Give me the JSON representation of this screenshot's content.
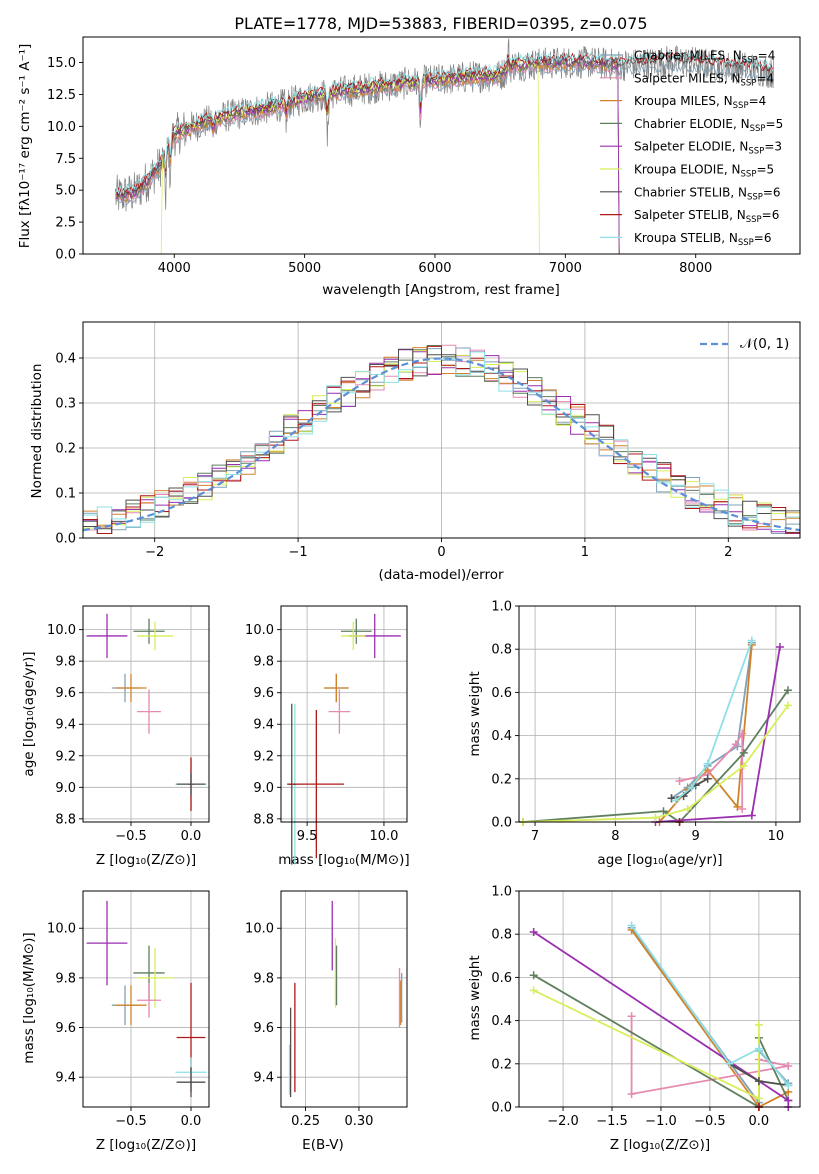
{
  "page_title": "PLATE=1778, MJD=53883, FIBERID=0395, z=0.075",
  "colors": {
    "Chabrier MILES": "#7fa2b8",
    "Salpeter MILES": "#e58ab0",
    "Kroupa MILES": "#d2832a",
    "Chabrier ELODIE": "#5f7f5f",
    "Salpeter ELODIE": "#9a2fb0",
    "Kroupa ELODIE": "#d8ee5a",
    "Chabrier STELIB": "#4f4f4f",
    "Salpeter STELIB": "#b01818",
    "Kroupa STELIB": "#8ee0e6",
    "data": "#808080",
    "normal": "#5b8fd8"
  },
  "chart_data": [
    {
      "id": "spectrum",
      "type": "line",
      "title": "PLATE=1778, MJD=53883, FIBERID=0395, z=0.075",
      "xlabel": "wavelength [Angstrom, rest frame]",
      "ylabel": "Flux [fλ10⁻¹⁷ erg cm⁻² s⁻¹ A⁻¹]",
      "xlim": [
        3300,
        8800
      ],
      "ylim": [
        0,
        17
      ],
      "xticks": [
        "4000",
        "5000",
        "6000",
        "7000",
        "8000"
      ],
      "yticks": [
        "0.0",
        "2.5",
        "5.0",
        "7.5",
        "10.0",
        "12.5",
        "15.0"
      ],
      "continuum": {
        "x": [
          3550,
          3700,
          3800,
          3900,
          3950,
          4000,
          4100,
          4200,
          4400,
          4600,
          4800,
          5000,
          5200,
          5500,
          5800,
          6000,
          6300,
          6500,
          6600,
          6800,
          7000,
          7200,
          7400,
          7600,
          7800,
          8000,
          8200,
          8400,
          8600
        ],
        "y": [
          4.5,
          4.8,
          5.8,
          7.0,
          8.5,
          9.3,
          9.8,
          10.2,
          10.8,
          11.2,
          11.6,
          12.2,
          12.6,
          13.0,
          13.4,
          13.6,
          13.9,
          14.0,
          14.8,
          14.9,
          15.0,
          15.0,
          14.8,
          14.9,
          15.1,
          15.0,
          14.7,
          14.6,
          14.2
        ]
      },
      "legend_placement": "right",
      "series": [
        {
          "name": "Chabrier MILES, N_SSP=4"
        },
        {
          "name": "Salpeter MILES, N_SSP=4"
        },
        {
          "name": "Kroupa MILES, N_SSP=4"
        },
        {
          "name": "Chabrier ELODIE, N_SSP=5"
        },
        {
          "name": "Salpeter ELODIE, N_SSP=3"
        },
        {
          "name": "Kroupa ELODIE, N_SSP=5"
        },
        {
          "name": "Chabrier STELIB, N_SSP=6"
        },
        {
          "name": "Salpeter STELIB, N_SSP=6"
        },
        {
          "name": "Kroupa STELIB, N_SSP=6"
        }
      ]
    },
    {
      "id": "residuals",
      "type": "line",
      "xlabel": "(data-model)/error",
      "ylabel": "Normed distribution",
      "xlim": [
        -2.5,
        2.5
      ],
      "ylim": [
        0,
        0.48
      ],
      "xticks": [
        "−2",
        "−1",
        "0",
        "1",
        "2"
      ],
      "yticks": [
        "0.0",
        "0.1",
        "0.2",
        "0.3",
        "0.4"
      ],
      "grid": true,
      "legend": "𝒩(0, 1)",
      "legend_placement": "top-right",
      "normal_curve": {
        "mean": 0,
        "sigma": 1
      }
    },
    {
      "id": "age_vs_Z",
      "type": "scatter",
      "xlabel": "Z [log₁₀(Z/Z⊙)]",
      "ylabel": "age  [log₁₀(age/yr)]",
      "xlim": [
        -0.9,
        0.15
      ],
      "ylim": [
        8.78,
        10.15
      ],
      "xticks": [
        {
          "v": -0.5,
          "t": "−0.5"
        },
        {
          "v": 0.0,
          "t": "0.0"
        }
      ],
      "yticks": [
        {
          "v": 8.8,
          "t": "8.8"
        },
        {
          "v": 9.0,
          "t": "9.0"
        },
        {
          "v": 9.2,
          "t": "9.2"
        },
        {
          "v": 9.4,
          "t": "9.4"
        },
        {
          "v": 9.6,
          "t": "9.6"
        },
        {
          "v": 9.8,
          "t": "9.8"
        },
        {
          "v": 10.0,
          "t": "10.0"
        }
      ],
      "points": [
        {
          "model": "Salpeter ELODIE",
          "x": -0.7,
          "y": 9.96,
          "xerr": 0.17,
          "yerr": 0.14
        },
        {
          "model": "Chabrier ELODIE",
          "x": -0.35,
          "y": 9.99,
          "xerr": 0.13,
          "yerr": 0.08
        },
        {
          "model": "Kroupa ELODIE",
          "x": -0.3,
          "y": 9.96,
          "xerr": 0.15,
          "yerr": 0.09
        },
        {
          "model": "Chabrier MILES",
          "x": -0.55,
          "y": 9.63,
          "xerr": 0.11,
          "yerr": 0.09
        },
        {
          "model": "Kroupa MILES",
          "x": -0.5,
          "y": 9.63,
          "xerr": 0.13,
          "yerr": 0.09
        },
        {
          "model": "Salpeter MILES",
          "x": -0.35,
          "y": 9.48,
          "xerr": 0.1,
          "yerr": 0.14
        },
        {
          "model": "Kroupa STELIB",
          "x": 0.0,
          "y": 9.02,
          "xerr": 0.13,
          "yerr": 0.16
        },
        {
          "model": "Salpeter STELIB",
          "x": 0.0,
          "y": 9.02,
          "xerr": 0.02,
          "yerr": 0.17
        },
        {
          "model": "Chabrier STELIB",
          "x": 0.0,
          "y": 9.02,
          "xerr": 0.12,
          "yerr": 0.07
        }
      ]
    },
    {
      "id": "age_vs_mass",
      "type": "scatter",
      "xlabel": "mass [log₁₀(M/M⊙)]",
      "xlim": [
        9.33,
        10.15
      ],
      "ylim": [
        8.78,
        10.15
      ],
      "xticks": [
        {
          "v": 9.5,
          "t": "9.5"
        },
        {
          "v": 10.0,
          "t": "10.0"
        }
      ],
      "yticks": [
        {
          "v": 8.8,
          "t": "8.8"
        },
        {
          "v": 9.0,
          "t": "9.0"
        },
        {
          "v": 9.2,
          "t": "9.2"
        },
        {
          "v": 9.4,
          "t": "9.4"
        },
        {
          "v": 9.6,
          "t": "9.6"
        },
        {
          "v": 9.8,
          "t": "9.8"
        },
        {
          "v": 10.0,
          "t": "10.0"
        }
      ],
      "points": [
        {
          "model": "Salpeter ELODIE",
          "x": 9.94,
          "y": 9.96,
          "xerr": 0.17,
          "yerr": 0.14
        },
        {
          "model": "Chabrier ELODIE",
          "x": 9.82,
          "y": 9.99,
          "xerr": 0.1,
          "yerr": 0.08
        },
        {
          "model": "Kroupa ELODIE",
          "x": 9.8,
          "y": 9.96,
          "xerr": 0.08,
          "yerr": 0.09
        },
        {
          "model": "Chabrier MILES",
          "x": 9.69,
          "y": 9.63,
          "xerr": 0.08,
          "yerr": 0.09
        },
        {
          "model": "Kroupa MILES",
          "x": 9.69,
          "y": 9.63,
          "xerr": 0.08,
          "yerr": 0.09
        },
        {
          "model": "Salpeter MILES",
          "x": 9.71,
          "y": 9.48,
          "xerr": 0.07,
          "yerr": 0.14
        },
        {
          "model": "Kroupa STELIB",
          "x": 9.42,
          "y": 9.02,
          "xerr": 0.05,
          "yerr": 0.51
        },
        {
          "model": "Chabrier STELIB",
          "x": 9.4,
          "y": 9.02,
          "xerr": 0.03,
          "yerr": 0.51
        },
        {
          "model": "Salpeter STELIB",
          "x": 9.56,
          "y": 9.02,
          "xerr": 0.18,
          "yerr": 0.47
        }
      ]
    },
    {
      "id": "weight_vs_age",
      "type": "line",
      "xlabel": "age  [log₁₀(age/yr)]",
      "ylabel": "mass weight",
      "xlim": [
        6.8,
        10.3
      ],
      "ylim": [
        0,
        1.0
      ],
      "xticks": [
        {
          "v": 7,
          "t": "7"
        },
        {
          "v": 8,
          "t": "8"
        },
        {
          "v": 9,
          "t": "9"
        },
        {
          "v": 10,
          "t": "10"
        }
      ],
      "yticks": [
        {
          "v": 0,
          "t": "0.0"
        },
        {
          "v": 0.2,
          "t": "0.2"
        },
        {
          "v": 0.4,
          "t": "0.4"
        },
        {
          "v": 0.6,
          "t": "0.6"
        },
        {
          "v": 0.8,
          "t": "0.8"
        },
        {
          "v": 1.0,
          "t": "1.0"
        }
      ],
      "grid": true,
      "series": [
        {
          "model": "Chabrier MILES",
          "x": [
            8.7,
            8.9,
            9.15,
            9.52,
            9.7
          ],
          "y": [
            0.11,
            0.16,
            0.26,
            0.35,
            0.83
          ]
        },
        {
          "model": "Kroupa MILES",
          "x": [
            8.55,
            8.9,
            9.15,
            9.52,
            9.7
          ],
          "y": [
            0.0,
            0.15,
            0.24,
            0.07,
            0.82
          ]
        },
        {
          "model": "Salpeter MILES",
          "x": [
            8.8,
            9.15,
            9.5,
            9.58,
            9.58
          ],
          "y": [
            0.19,
            0.22,
            0.36,
            0.41,
            0.06
          ]
        },
        {
          "model": "Chabrier ELODIE",
          "x": [
            6.85,
            8.6,
            8.8,
            9.6,
            10.15
          ],
          "y": [
            0.0,
            0.05,
            0.0,
            0.32,
            0.61
          ]
        },
        {
          "model": "Salpeter ELODIE",
          "x": [
            8.5,
            9.7,
            10.05
          ],
          "y": [
            0.0,
            0.03,
            0.81
          ]
        },
        {
          "model": "Kroupa ELODIE",
          "x": [
            6.85,
            8.5,
            8.9,
            9.6,
            10.15
          ],
          "y": [
            0.0,
            0.02,
            0.06,
            0.26,
            0.54
          ]
        },
        {
          "model": "Chabrier STELIB",
          "x": [
            8.7,
            8.85,
            9.0,
            9.15
          ],
          "y": [
            0.11,
            0.12,
            0.17,
            0.2
          ]
        },
        {
          "model": "Salpeter STELIB",
          "x": [
            8.8
          ],
          "y": [
            0.0
          ]
        },
        {
          "model": "Kroupa STELIB",
          "x": [
            8.75,
            8.95,
            9.15,
            9.7
          ],
          "y": [
            0.1,
            0.16,
            0.27,
            0.84
          ]
        }
      ]
    },
    {
      "id": "mass_vs_Z",
      "type": "scatter",
      "xlabel": "Z [log₁₀(Z/Z⊙)]",
      "ylabel": "mass [log₁₀(M/M⊙)]",
      "xlim": [
        -0.9,
        0.15
      ],
      "ylim": [
        9.28,
        10.15
      ],
      "xticks": [
        {
          "v": -0.5,
          "t": "−0.5"
        },
        {
          "v": 0.0,
          "t": "0.0"
        }
      ],
      "yticks": [
        {
          "v": 9.4,
          "t": "9.4"
        },
        {
          "v": 9.6,
          "t": "9.6"
        },
        {
          "v": 9.8,
          "t": "9.8"
        },
        {
          "v": 10.0,
          "t": "10.0"
        }
      ],
      "points": [
        {
          "model": "Salpeter ELODIE",
          "x": -0.7,
          "y": 9.94,
          "xerr": 0.17,
          "yerr": 0.17
        },
        {
          "model": "Chabrier ELODIE",
          "x": -0.35,
          "y": 9.82,
          "xerr": 0.13,
          "yerr": 0.11
        },
        {
          "model": "Kroupa ELODIE",
          "x": -0.3,
          "y": 9.8,
          "xerr": 0.15,
          "yerr": 0.12
        },
        {
          "model": "Chabrier MILES",
          "x": -0.55,
          "y": 9.69,
          "xerr": 0.11,
          "yerr": 0.08
        },
        {
          "model": "Kroupa MILES",
          "x": -0.5,
          "y": 9.69,
          "xerr": 0.13,
          "yerr": 0.08
        },
        {
          "model": "Salpeter MILES",
          "x": -0.35,
          "y": 9.71,
          "xerr": 0.1,
          "yerr": 0.07
        },
        {
          "model": "Salpeter STELIB",
          "x": 0.0,
          "y": 9.56,
          "xerr": 0.12,
          "yerr": 0.22
        },
        {
          "model": "Kroupa STELIB",
          "x": 0.0,
          "y": 9.42,
          "xerr": 0.13,
          "yerr": 0.06
        },
        {
          "model": "Chabrier STELIB",
          "x": 0.0,
          "y": 9.38,
          "xerr": 0.12,
          "yerr": 0.06
        }
      ]
    },
    {
      "id": "mass_vs_ebv",
      "type": "scatter",
      "xlabel": "E(B-V)",
      "xlim": [
        0.227,
        0.345
      ],
      "ylim": [
        9.28,
        10.15
      ],
      "xticks": [
        {
          "v": 0.25,
          "t": "0.25"
        },
        {
          "v": 0.3,
          "t": "0.30"
        }
      ],
      "yticks": [
        {
          "v": 9.4,
          "t": "9.4"
        },
        {
          "v": 9.6,
          "t": "9.6"
        },
        {
          "v": 9.8,
          "t": "9.8"
        },
        {
          "v": 10.0,
          "t": "10.0"
        }
      ],
      "points": [
        {
          "model": "Salpeter ELODIE",
          "x": 0.275,
          "y": 9.97,
          "xerr": 0.0,
          "yerr": 0.14
        },
        {
          "model": "Kroupa ELODIE",
          "x": 0.278,
          "y": 9.82,
          "xerr": 0.0,
          "yerr": 0.14
        },
        {
          "model": "Chabrier ELODIE",
          "x": 0.279,
          "y": 9.81,
          "xerr": 0.0,
          "yerr": 0.12
        },
        {
          "model": "Chabrier MILES",
          "x": 0.34,
          "y": 9.72,
          "xerr": 0.0,
          "yerr": 0.1
        },
        {
          "model": "Kroupa MILES",
          "x": 0.339,
          "y": 9.7,
          "xerr": 0.0,
          "yerr": 0.09
        },
        {
          "model": "Salpeter MILES",
          "x": 0.338,
          "y": 9.72,
          "xerr": 0.0,
          "yerr": 0.12
        },
        {
          "model": "Salpeter STELIB",
          "x": 0.24,
          "y": 9.56,
          "xerr": 0.0,
          "yerr": 0.22
        },
        {
          "model": "Kroupa STELIB",
          "x": 0.235,
          "y": 9.43,
          "xerr": 0.0,
          "yerr": 0.1
        },
        {
          "model": "Chabrier STELIB",
          "x": 0.236,
          "y": 9.5,
          "xerr": 0.0,
          "yerr": 0.18
        }
      ]
    },
    {
      "id": "weight_vs_Z",
      "type": "line",
      "xlabel": "Z [log₁₀(Z/Z⊙)]",
      "ylabel": "mass weight",
      "xlim": [
        -2.45,
        0.42
      ],
      "ylim": [
        0,
        1.0
      ],
      "xticks": [
        {
          "v": -2.0,
          "t": "−2.0"
        },
        {
          "v": -1.5,
          "t": "−1.5"
        },
        {
          "v": -1.0,
          "t": "−1.0"
        },
        {
          "v": -0.5,
          "t": "−0.5"
        },
        {
          "v": 0.0,
          "t": "0.0"
        }
      ],
      "yticks": [
        {
          "v": 0,
          "t": "0.0"
        },
        {
          "v": 0.2,
          "t": "0.2"
        },
        {
          "v": 0.4,
          "t": "0.4"
        },
        {
          "v": 0.6,
          "t": "0.6"
        },
        {
          "v": 0.8,
          "t": "0.8"
        },
        {
          "v": 1.0,
          "t": "1.0"
        }
      ],
      "grid": true,
      "series": [
        {
          "model": "Chabrier MILES",
          "x": [
            -1.3,
            0.0,
            0.0,
            0.3
          ],
          "y": [
            0.83,
            0.02,
            0.26,
            0.11
          ]
        },
        {
          "model": "Kroupa MILES",
          "x": [
            -1.3,
            0.0,
            0.3
          ],
          "y": [
            0.82,
            0.0,
            0.07
          ]
        },
        {
          "model": "Salpeter MILES",
          "x": [
            -1.3,
            -1.3,
            0.3,
            0.0
          ],
          "y": [
            0.42,
            0.06,
            0.19,
            0.22
          ]
        },
        {
          "model": "Chabrier ELODIE",
          "x": [
            -2.3,
            0.0,
            0.0,
            0.3
          ],
          "y": [
            0.61,
            0.0,
            0.32,
            0.03
          ]
        },
        {
          "model": "Salpeter ELODIE",
          "x": [
            -2.3,
            0.3,
            0.3
          ],
          "y": [
            0.81,
            0.03,
            0.0
          ]
        },
        {
          "model": "Kroupa ELODIE",
          "x": [
            -2.3,
            0.0,
            0.0
          ],
          "y": [
            0.54,
            0.04,
            0.38
          ]
        },
        {
          "model": "Chabrier STELIB",
          "x": [
            -0.3,
            0.0,
            0.3
          ],
          "y": [
            0.2,
            0.12,
            0.1
          ]
        },
        {
          "model": "Salpeter STELIB",
          "x": [
            0.0
          ],
          "y": [
            0.0
          ]
        },
        {
          "model": "Kroupa STELIB",
          "x": [
            -1.3,
            -0.3,
            0.0,
            0.3
          ],
          "y": [
            0.84,
            0.2,
            0.27,
            0.1
          ]
        }
      ]
    }
  ]
}
